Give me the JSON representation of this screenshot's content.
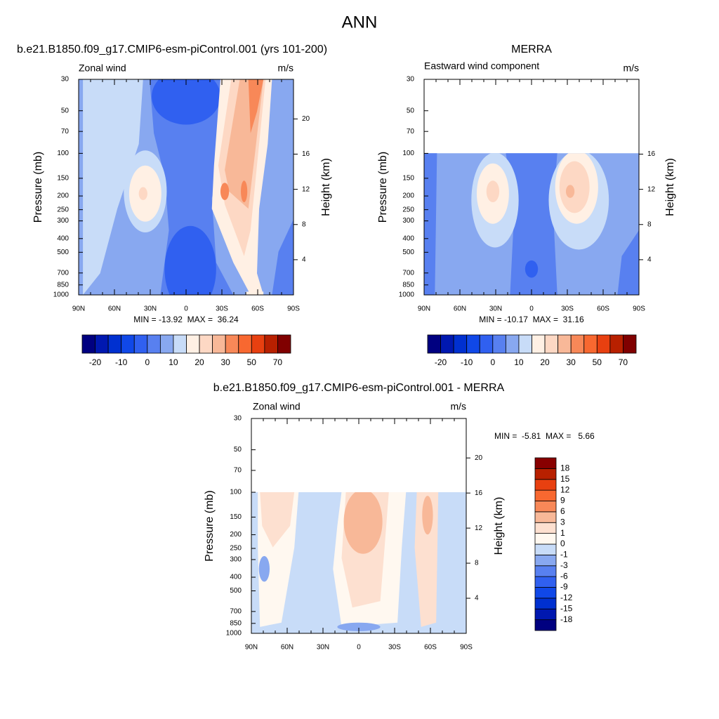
{
  "title": "ANN",
  "chart_data": [
    {
      "type": "contour",
      "title": "b.e21.B1850.f09_g17.CMIP6-esm-piControl.001 (yrs 101-200)",
      "left_string": "Zonal wind",
      "right_string": "m/s",
      "ylabel": "Pressure (mb)",
      "y2label": "Height (km)",
      "stats": "MIN = -13.92  MAX =  36.24",
      "xlim": [
        90,
        -90
      ],
      "xticks": [
        {
          "value": 90,
          "label": "90N"
        },
        {
          "value": 60,
          "label": "60N"
        },
        {
          "value": 30,
          "label": "30N"
        },
        0,
        {
          "value": -30,
          "label": "30S"
        },
        {
          "value": -60,
          "label": "60S"
        },
        {
          "value": -90,
          "label": "90S"
        }
      ],
      "ylim": [
        1000,
        30
      ],
      "ylog": true,
      "yticks": [
        30,
        50,
        70,
        100,
        150,
        200,
        250,
        300,
        400,
        500,
        700,
        850,
        1000
      ],
      "y2lim": [
        0,
        24.5
      ],
      "y2ticks": [
        4,
        8,
        12,
        16,
        20
      ],
      "colorbar": {
        "orientation": "horizontal",
        "labels": [
          -20,
          -10,
          0,
          10,
          20,
          30,
          50,
          70
        ],
        "colors": [
          "#000080",
          "#0018b0",
          "#0030d0",
          "#1048e8",
          "#3060f0",
          "#5880f0",
          "#88a8f0",
          "#c8dcf8",
          "#fff0e4",
          "#fdd8c4",
          "#f8b898",
          "#f88858",
          "#f86830",
          "#e84010",
          "#b82000",
          "#800000"
        ]
      }
    },
    {
      "type": "contour",
      "title": "MERRA",
      "left_string": "Eastward wind component",
      "right_string": "m/s",
      "ylabel": "Pressure (mb)",
      "y2label": "Height (km)",
      "stats": "MIN = -10.17  MAX =  31.16",
      "xlim": [
        90,
        -90
      ],
      "xticks": [
        {
          "value": 90,
          "label": "90N"
        },
        {
          "value": 60,
          "label": "60N"
        },
        {
          "value": 30,
          "label": "30N"
        },
        0,
        {
          "value": -30,
          "label": "30S"
        },
        {
          "value": -60,
          "label": "60S"
        },
        {
          "value": -90,
          "label": "90S"
        }
      ],
      "ylim": [
        1000,
        30
      ],
      "ylog": true,
      "yticks": [
        30,
        50,
        70,
        100,
        150,
        200,
        250,
        300,
        400,
        500,
        700,
        850,
        1000
      ],
      "y2lim": [
        0,
        24.5
      ],
      "y2ticks": [
        4,
        8,
        12,
        16
      ],
      "colorbar": {
        "orientation": "horizontal",
        "labels": [
          -20,
          -10,
          0,
          10,
          20,
          30,
          50,
          70
        ],
        "colors": [
          "#000080",
          "#0018b0",
          "#0030d0",
          "#1048e8",
          "#3060f0",
          "#5880f0",
          "#88a8f0",
          "#c8dcf8",
          "#fff0e4",
          "#fdd8c4",
          "#f8b898",
          "#f88858",
          "#f86830",
          "#e84010",
          "#b82000",
          "#800000"
        ]
      }
    },
    {
      "type": "contour",
      "title": "b.e21.B1850.f09_g17.CMIP6-esm-piControl.001 - MERRA",
      "left_string": "Zonal wind",
      "right_string": "m/s",
      "ylabel": "Pressure (mb)",
      "y2label": "Height (km)",
      "stats": "MIN =  -5.81  MAX =   5.66",
      "xlim": [
        90,
        -90
      ],
      "xticks": [
        {
          "value": 90,
          "label": "90N"
        },
        {
          "value": 60,
          "label": "60N"
        },
        {
          "value": 30,
          "label": "30N"
        },
        0,
        {
          "value": -30,
          "label": "30S"
        },
        {
          "value": -60,
          "label": "60S"
        },
        {
          "value": -90,
          "label": "90S"
        }
      ],
      "ylim": [
        1000,
        30
      ],
      "ylog": true,
      "yticks": [
        30,
        50,
        70,
        100,
        150,
        200,
        250,
        300,
        400,
        500,
        700,
        850,
        1000
      ],
      "y2lim": [
        0,
        24.5
      ],
      "y2ticks": [
        4,
        8,
        12,
        16,
        20
      ],
      "colorbar": {
        "orientation": "vertical",
        "labels": [
          -18,
          -15,
          -12,
          -9,
          -6,
          -3,
          -1,
          0,
          1,
          3,
          6,
          9,
          12,
          15,
          18
        ],
        "colors": [
          "#000080",
          "#0018b0",
          "#0030d0",
          "#1048e8",
          "#3060f0",
          "#5880f0",
          "#88a8f0",
          "#c8dcf8",
          "#fff8f0",
          "#fde0d0",
          "#f8b898",
          "#f88858",
          "#f86830",
          "#e84010",
          "#b82000",
          "#880000"
        ]
      }
    }
  ]
}
